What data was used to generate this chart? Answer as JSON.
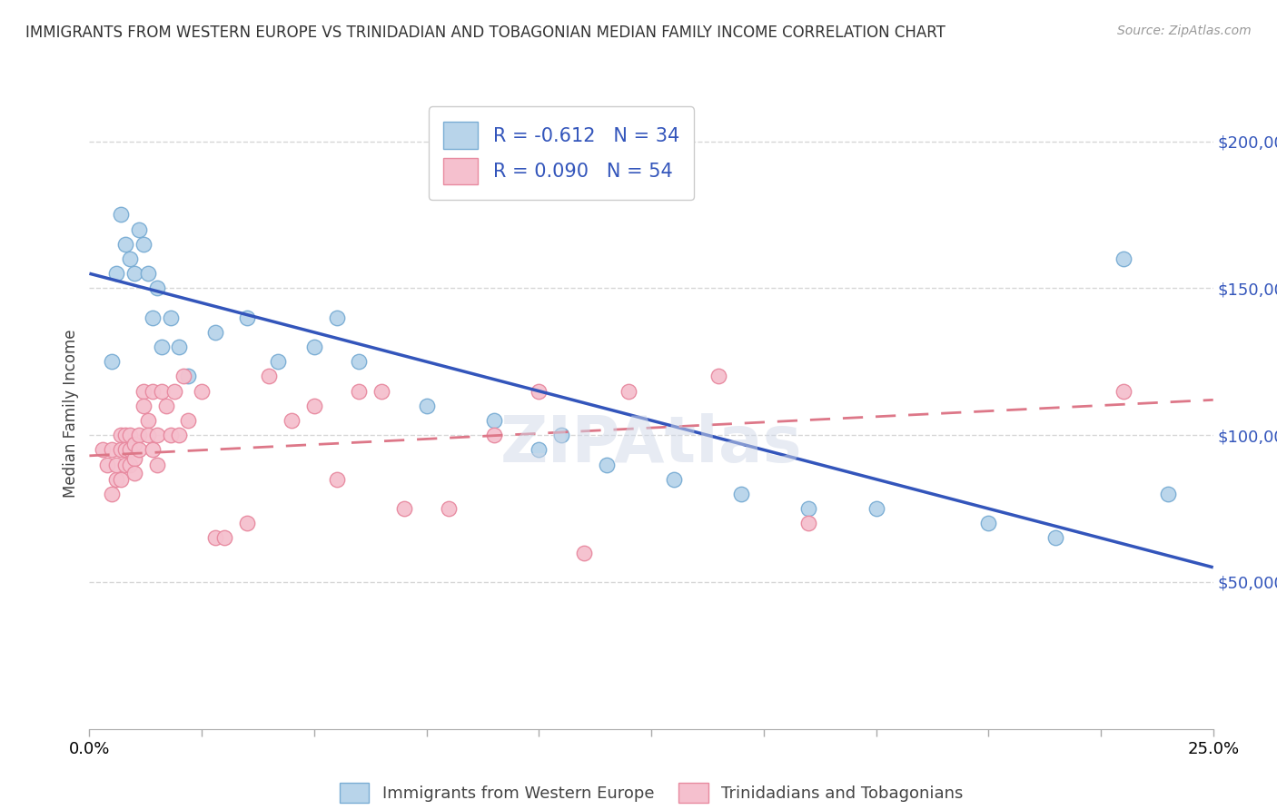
{
  "title": "IMMIGRANTS FROM WESTERN EUROPE VS TRINIDADIAN AND TOBAGONIAN MEDIAN FAMILY INCOME CORRELATION CHART",
  "source": "Source: ZipAtlas.com",
  "ylabel": "Median Family Income",
  "blue_label": "Immigrants from Western Europe",
  "pink_label": "Trinidadians and Tobagonians",
  "blue_R": -0.612,
  "blue_N": 34,
  "pink_R": 0.09,
  "pink_N": 54,
  "blue_color": "#b8d4ea",
  "blue_edge": "#7aadd4",
  "pink_color": "#f5c0ce",
  "pink_edge": "#e88aa0",
  "blue_line_color": "#3355bb",
  "pink_line_color": "#dd7788",
  "xmin": 0.0,
  "xmax": 0.25,
  "ymin": 0,
  "ymax": 215000,
  "yticks": [
    50000,
    100000,
    150000,
    200000
  ],
  "ytick_labels": [
    "$50,000",
    "$100,000",
    "$150,000",
    "$200,000"
  ],
  "grid_color": "#cccccc",
  "background_color": "#ffffff",
  "blue_x": [
    0.005,
    0.006,
    0.007,
    0.008,
    0.009,
    0.01,
    0.011,
    0.012,
    0.013,
    0.014,
    0.015,
    0.016,
    0.018,
    0.02,
    0.022,
    0.028,
    0.035,
    0.042,
    0.05,
    0.055,
    0.06,
    0.075,
    0.09,
    0.1,
    0.105,
    0.115,
    0.13,
    0.145,
    0.16,
    0.175,
    0.2,
    0.215,
    0.23,
    0.24
  ],
  "blue_y": [
    125000,
    155000,
    175000,
    165000,
    160000,
    155000,
    170000,
    165000,
    155000,
    140000,
    150000,
    130000,
    140000,
    130000,
    120000,
    135000,
    140000,
    125000,
    130000,
    140000,
    125000,
    110000,
    105000,
    95000,
    100000,
    90000,
    85000,
    80000,
    75000,
    75000,
    70000,
    65000,
    160000,
    80000
  ],
  "pink_x": [
    0.003,
    0.004,
    0.005,
    0.005,
    0.006,
    0.006,
    0.007,
    0.007,
    0.007,
    0.008,
    0.008,
    0.008,
    0.009,
    0.009,
    0.009,
    0.01,
    0.01,
    0.01,
    0.011,
    0.011,
    0.012,
    0.012,
    0.013,
    0.013,
    0.014,
    0.014,
    0.015,
    0.015,
    0.016,
    0.017,
    0.018,
    0.019,
    0.02,
    0.021,
    0.022,
    0.025,
    0.028,
    0.03,
    0.035,
    0.04,
    0.045,
    0.05,
    0.06,
    0.07,
    0.08,
    0.09,
    0.1,
    0.11,
    0.12,
    0.14,
    0.16,
    0.055,
    0.065,
    0.23
  ],
  "pink_y": [
    95000,
    90000,
    80000,
    95000,
    85000,
    90000,
    100000,
    95000,
    85000,
    100000,
    95000,
    90000,
    100000,
    95000,
    90000,
    97000,
    92000,
    87000,
    100000,
    95000,
    115000,
    110000,
    105000,
    100000,
    115000,
    95000,
    100000,
    90000,
    115000,
    110000,
    100000,
    115000,
    100000,
    120000,
    105000,
    115000,
    65000,
    65000,
    70000,
    120000,
    105000,
    110000,
    115000,
    75000,
    75000,
    100000,
    115000,
    60000,
    115000,
    120000,
    70000,
    85000,
    115000,
    115000
  ]
}
